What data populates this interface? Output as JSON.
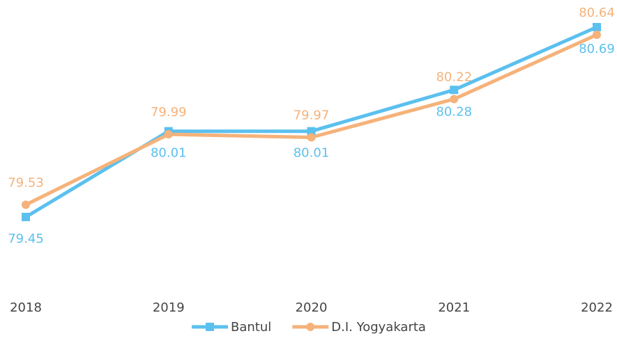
{
  "chart_data": {
    "type": "line",
    "categories": [
      "2018",
      "2019",
      "2020",
      "2021",
      "2022"
    ],
    "series": [
      {
        "name": "Bantul",
        "color": "#5bc0ee",
        "marker": "square",
        "values": [
          79.45,
          80.01,
          80.01,
          80.28,
          80.69
        ]
      },
      {
        "name": "D.I. Yogyakarta",
        "color": "#f5b27a",
        "marker": "circle",
        "values": [
          79.53,
          79.99,
          79.97,
          80.22,
          80.64
        ]
      }
    ],
    "legend": "bottom"
  }
}
